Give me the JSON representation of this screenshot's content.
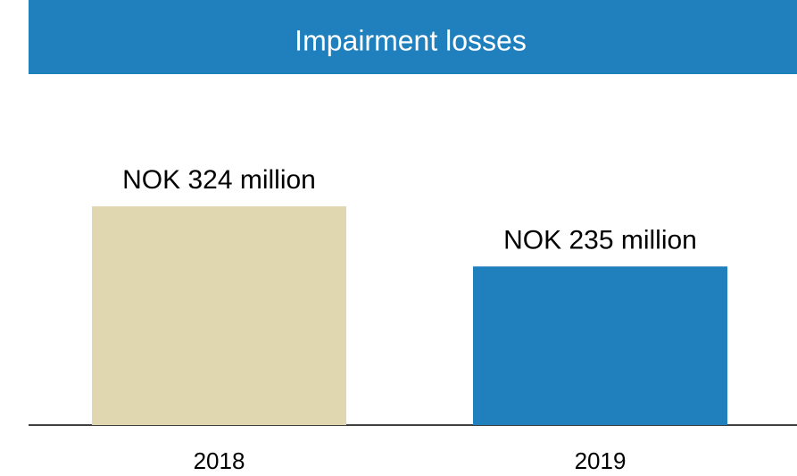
{
  "chart_data": {
    "type": "bar",
    "title": "Impairment losses",
    "categories": [
      "2018",
      "2019"
    ],
    "values": [
      324,
      235
    ],
    "value_labels": [
      "NOK 324 million",
      "NOK 235 million"
    ],
    "colors": [
      "#e0d6b0",
      "#1f80bd"
    ]
  }
}
